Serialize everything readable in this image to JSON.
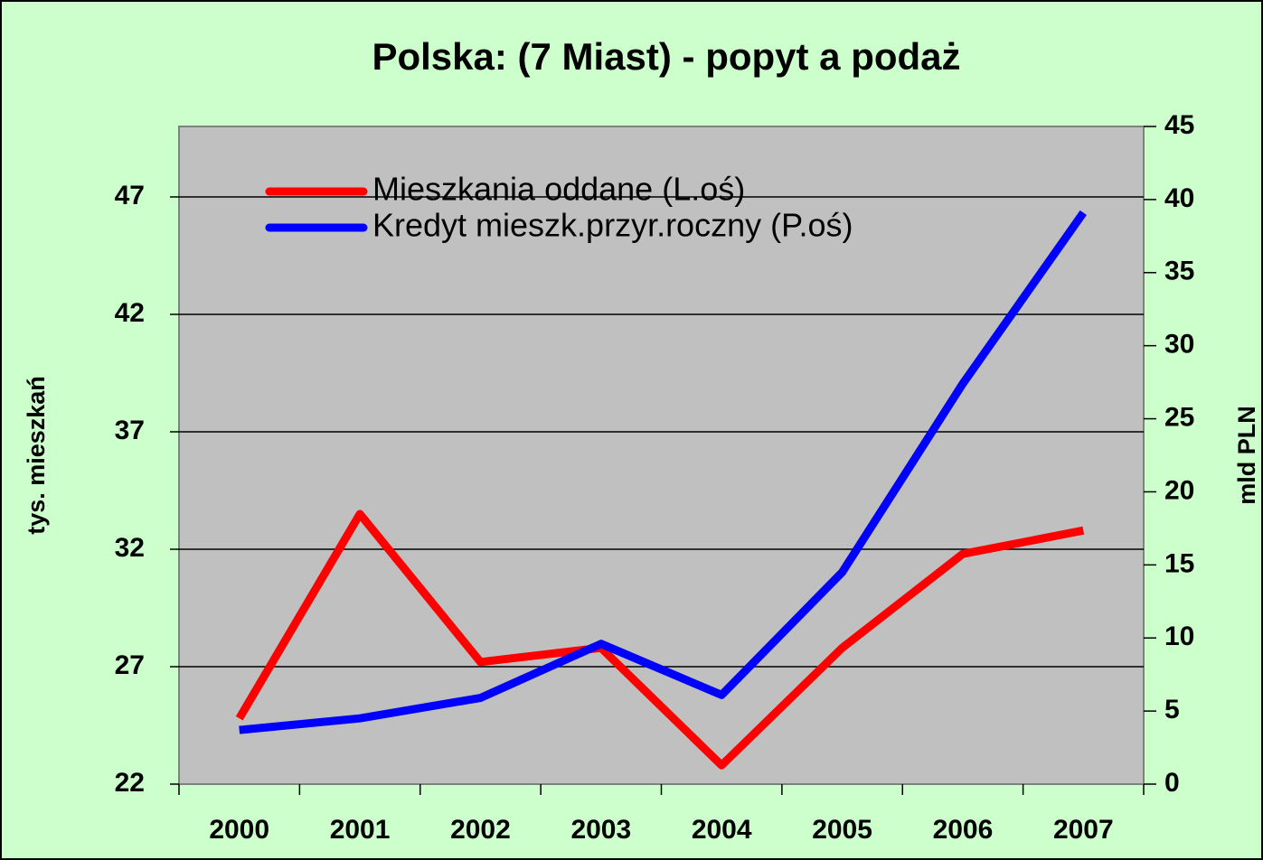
{
  "chart_data": {
    "type": "line",
    "title": "Polska: (7 Miast) - popyt a podaż",
    "categories": [
      "2000",
      "2001",
      "2002",
      "2003",
      "2004",
      "2005",
      "2006",
      "2007"
    ],
    "series": [
      {
        "name": "Mieszkania oddane (L.oś)",
        "color": "#ff0000",
        "values": [
          24.8,
          33.5,
          27.2,
          27.8,
          22.8,
          27.8,
          31.8,
          32.8
        ]
      },
      {
        "name": "Kredyt mieszk.przyr.roczny (P.oś)",
        "color": "#0000ff",
        "axis": "y2",
        "values": [
          3.7,
          4.5,
          5.9,
          9.6,
          6.1,
          14.5,
          27.4,
          39.1
        ]
      }
    ],
    "ylabel": "tys. mieszkań",
    "y2label": "mld PLN",
    "ylim": [
      22,
      50
    ],
    "yticks": [
      22,
      27,
      32,
      37,
      42,
      47
    ],
    "y2lim": [
      0,
      45
    ],
    "y2ticks": [
      0,
      5,
      10,
      15,
      20,
      25,
      30,
      35,
      40,
      45
    ],
    "grid": true,
    "legend": "upper left"
  }
}
